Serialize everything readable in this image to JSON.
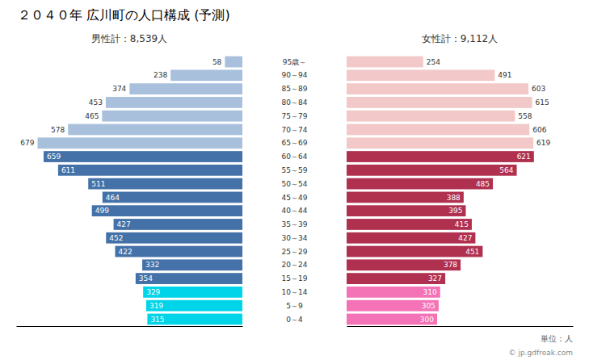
{
  "chart_data": {
    "type": "bar",
    "orientation": "horizontal",
    "title": "２０４０年 広川町の人口構成 (予測)",
    "categories": [
      "0～4",
      "5～9",
      "10～14",
      "15～19",
      "20～24",
      "25～29",
      "30～34",
      "35～39",
      "40～44",
      "45～49",
      "50～54",
      "55～59",
      "60～64",
      "65～69",
      "70～74",
      "75～79",
      "80～84",
      "85～89",
      "90～94",
      "95歳～"
    ],
    "series": [
      {
        "name": "男性計：8,539人",
        "values": [
          315,
          319,
          329,
          354,
          332,
          422,
          452,
          427,
          499,
          464,
          511,
          611,
          659,
          679,
          578,
          465,
          453,
          374,
          238,
          58
        ],
        "colors": [
          "#00d4e8",
          "#00d4e8",
          "#00d4e8",
          "#4472a8",
          "#4472a8",
          "#4472a8",
          "#4472a8",
          "#4472a8",
          "#4472a8",
          "#4472a8",
          "#4472a8",
          "#4472a8",
          "#4472a8",
          "#a8c0dc",
          "#a8c0dc",
          "#a8c0dc",
          "#a8c0dc",
          "#a8c0dc",
          "#a8c0dc",
          "#a8c0dc"
        ]
      },
      {
        "name": "女性計：9,112人",
        "values": [
          300,
          305,
          310,
          327,
          378,
          451,
          427,
          415,
          395,
          388,
          485,
          564,
          621,
          619,
          606,
          558,
          615,
          603,
          491,
          254
        ],
        "colors": [
          "#f472b6",
          "#f472b6",
          "#f472b6",
          "#b03050",
          "#b03050",
          "#b03050",
          "#b03050",
          "#b03050",
          "#b03050",
          "#b03050",
          "#b03050",
          "#b03050",
          "#b03050",
          "#f2c8c8",
          "#f2c8c8",
          "#f2c8c8",
          "#f2c8c8",
          "#f2c8c8",
          "#f2c8c8",
          "#f2c8c8"
        ]
      }
    ],
    "xlim": [
      0,
      750
    ],
    "tick_labels": false,
    "data_labels": true,
    "grid": false,
    "annotations": [
      "単位：人",
      "© jp.gdfreak.com"
    ]
  }
}
